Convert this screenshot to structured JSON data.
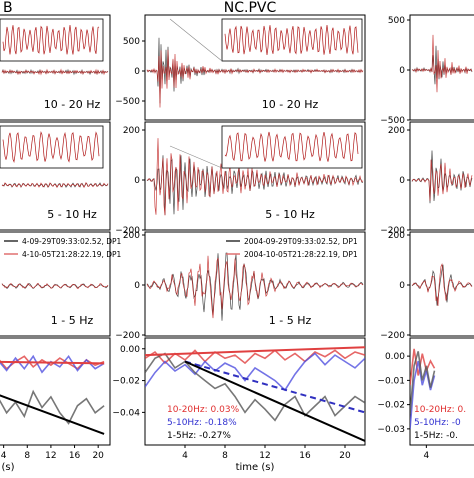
{
  "chart_data": [
    {
      "type": "line",
      "panel": "station-left",
      "title": "B",
      "rows": [
        {
          "band_label": "10 - 20 Hz",
          "has_inset": true,
          "yticks": []
        },
        {
          "band_label": "5 - 10 Hz",
          "has_inset": true,
          "yticks": []
        },
        {
          "band_label": "1 - 5 Hz",
          "has_inset": false,
          "yticks": [],
          "legend": [
            "4-09-29T09:33:02.52, DP1",
            "4-10-05T21:28:22.19, DP1"
          ]
        },
        {
          "band_label": "",
          "yticks": [],
          "xticks": [
            "4",
            "8",
            "12",
            "16",
            "20"
          ],
          "xlabel": "(s)",
          "series": [
            {
              "color": "#e04040",
              "x": [
                0,
                1.5,
                3,
                4.5,
                6,
                7.5,
                9,
                10.5,
                12,
                13.5,
                15,
                16.5,
                18,
                19.5,
                21
              ],
              "y": [
                -0.004,
                -0.008,
                -0.003,
                -0.009,
                -0.005,
                -0.002,
                -0.008,
                -0.004,
                -0.007,
                -0.003,
                -0.006,
                -0.009,
                -0.004,
                -0.007,
                -0.005
              ]
            },
            {
              "color": "#5050e0",
              "x": [
                0,
                1.5,
                3,
                4.5,
                6,
                7.5,
                9,
                10.5,
                12,
                13.5,
                15,
                16.5,
                18,
                19.5,
                21
              ],
              "y": [
                -0.006,
                -0.012,
                -0.004,
                -0.01,
                -0.003,
                -0.009,
                -0.002,
                -0.011,
                -0.005,
                -0.008,
                -0.002,
                -0.01,
                -0.004,
                -0.009,
                -0.006
              ]
            },
            {
              "color": "#555555",
              "x": [
                0,
                1.5,
                3,
                4.5,
                6,
                7.5,
                9,
                10.5,
                12,
                13.5,
                15,
                16.5,
                18,
                19.5,
                21
              ],
              "y": [
                -0.024,
                -0.03,
                -0.025,
                -0.034,
                -0.028,
                -0.036,
                -0.022,
                -0.031,
                -0.025,
                -0.034,
                -0.04,
                -0.03,
                -0.026,
                -0.034,
                -0.03
              ]
            },
            {
              "color": "#e04040",
              "fit": true,
              "x": [
                0,
                21
              ],
              "y": [
                -0.005,
                -0.006
              ]
            },
            {
              "color": "#000000",
              "fit": true,
              "x": [
                0,
                21
              ],
              "y": [
                -0.02,
                -0.046
              ]
            }
          ]
        }
      ]
    },
    {
      "type": "line",
      "panel": "station-center",
      "title": "NC.PVC",
      "rows": [
        {
          "band_label": "10 - 20 Hz",
          "has_inset": true,
          "ylim": [
            -1000,
            1000
          ],
          "yticks": [
            "500",
            "0",
            "−500"
          ]
        },
        {
          "band_label": "5 - 10 Hz",
          "has_inset": true,
          "ylim": [
            -400,
            400
          ],
          "yticks": [
            "200",
            "0",
            "−200"
          ]
        },
        {
          "band_label": "1 - 5 Hz",
          "has_inset": false,
          "ylim": [
            -340,
            340
          ],
          "yticks": [
            "200",
            "0",
            "−200"
          ],
          "legend": [
            "2004-09-29T09:33:02.52, DP1",
            "2004-10-05T21:28:22.19, DP1"
          ]
        },
        {
          "band_label": "",
          "ylim": [
            -0.058,
            0.003
          ],
          "yticks": [
            "0.00",
            "−0.02",
            "−0.04"
          ],
          "xticks": [
            "4",
            "8",
            "12",
            "16",
            "20"
          ],
          "xlabel": "time (s)",
          "annotations": [
            {
              "text": "10-20Hz: 0.03%",
              "color": "#e03030"
            },
            {
              "text": "5-10Hz: -0.18%",
              "color": "#3030d0"
            },
            {
              "text": "1-5Hz: -0.27%",
              "color": "#000000"
            }
          ],
          "series": [
            {
              "color": "#e04040",
              "x": [
                0,
                1,
                2,
                3,
                4,
                5,
                6,
                7,
                8,
                9,
                10,
                11,
                12,
                13,
                14,
                15,
                16,
                17,
                18,
                19,
                20,
                21,
                22
              ],
              "y": [
                -0.006,
                -0.002,
                -0.009,
                -0.003,
                -0.007,
                -0.001,
                -0.008,
                -0.002,
                -0.006,
                -0.004,
                -0.009,
                -0.003,
                -0.006,
                -0.001,
                -0.007,
                -0.003,
                -0.008,
                -0.002,
                -0.005,
                -0.001,
                -0.006,
                -0.002,
                -0.004
              ]
            },
            {
              "color": "#5050e0",
              "x": [
                0,
                1,
                2,
                3,
                4,
                5,
                6,
                7,
                8,
                9,
                10,
                11,
                12,
                13,
                14,
                15,
                16,
                17,
                18,
                19,
                20,
                21,
                22
              ],
              "y": [
                -0.024,
                -0.015,
                -0.008,
                -0.014,
                -0.01,
                -0.016,
                -0.008,
                -0.014,
                -0.009,
                -0.012,
                -0.02,
                -0.012,
                -0.016,
                -0.02,
                -0.026,
                -0.016,
                -0.008,
                -0.003,
                -0.01,
                -0.004,
                -0.008,
                -0.012,
                -0.006
              ]
            },
            {
              "color": "#555555",
              "x": [
                0,
                1,
                2,
                3,
                4,
                5,
                6,
                7,
                8,
                9,
                10,
                11,
                12,
                13,
                14,
                15,
                16,
                17,
                18,
                19,
                20,
                21,
                22
              ],
              "y": [
                -0.015,
                -0.006,
                -0.003,
                -0.012,
                -0.008,
                -0.015,
                -0.02,
                -0.025,
                -0.022,
                -0.03,
                -0.04,
                -0.032,
                -0.038,
                -0.045,
                -0.035,
                -0.03,
                -0.042,
                -0.036,
                -0.03,
                -0.042,
                -0.036,
                -0.03,
                -0.034
              ]
            },
            {
              "color": "#e04040",
              "fit": true,
              "x": [
                0,
                22
              ],
              "y": [
                -0.004,
                0.001
              ]
            },
            {
              "color": "#3030c0",
              "fit": true,
              "dashed": true,
              "x": [
                4,
                22
              ],
              "y": [
                -0.008,
                -0.04
              ]
            },
            {
              "color": "#000000",
              "fit": true,
              "x": [
                4,
                22
              ],
              "y": [
                -0.008,
                -0.058
              ]
            }
          ]
        }
      ]
    },
    {
      "type": "line",
      "panel": "station-right",
      "title": "",
      "rows": [
        {
          "band_label": "",
          "has_inset": false,
          "yticks": [
            "500",
            "0",
            "−500"
          ]
        },
        {
          "band_label": "",
          "has_inset": false,
          "yticks": [
            "200",
            "0",
            "−200"
          ]
        },
        {
          "band_label": "",
          "has_inset": false,
          "yticks": [
            "200",
            "0",
            "−200"
          ]
        },
        {
          "band_label": "",
          "ylim": [
            -0.035,
            0.005
          ],
          "yticks": [
            "0.00",
            "−0.01",
            "−0.02",
            "−0.03"
          ],
          "xticks": [
            "4"
          ],
          "annotations": [
            {
              "text": "10-20Hz: 0.",
              "color": "#e03030"
            },
            {
              "text": "5-10Hz: -0",
              "color": "#3030d0"
            },
            {
              "text": "1-5Hz: -0.",
              "color": "#000000"
            }
          ],
          "series": [
            {
              "color": "#e04040",
              "x": [
                0,
                1,
                2,
                3,
                4,
                5,
                6
              ],
              "y": [
                -0.012,
                0.003,
                -0.008,
                0.001,
                -0.006,
                -0.002,
                -0.005
              ]
            },
            {
              "color": "#5050e0",
              "x": [
                0,
                1,
                2,
                3,
                4,
                5,
                6
              ],
              "y": [
                -0.03,
                -0.01,
                -0.002,
                -0.012,
                -0.006,
                -0.014,
                -0.008
              ]
            },
            {
              "color": "#555555",
              "x": [
                0,
                1,
                2,
                3,
                4,
                5,
                6
              ],
              "y": [
                -0.024,
                -0.004,
                0.002,
                -0.01,
                -0.004,
                -0.013,
                -0.006
              ]
            }
          ]
        }
      ]
    }
  ]
}
